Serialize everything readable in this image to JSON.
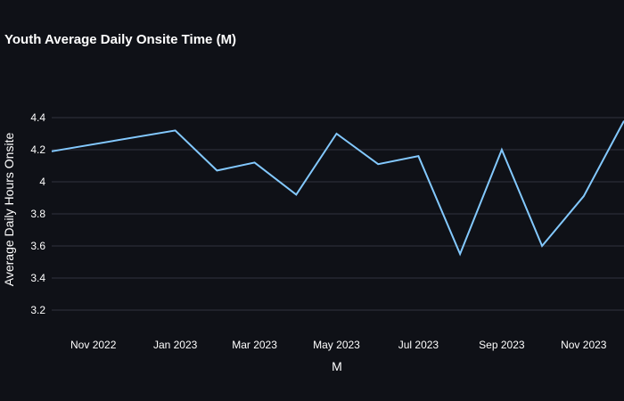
{
  "chart_data": {
    "type": "line",
    "title": "Youth Average Daily Onsite Time (M)",
    "xlabel": "M",
    "ylabel": "Average Daily Hours Onsite",
    "ylim": [
      3.1,
      4.6
    ],
    "y_ticks": [
      3.2,
      3.4,
      3.6,
      3.8,
      4,
      4.2,
      4.4
    ],
    "y_tick_labels": [
      "3.2",
      "3.4",
      "3.6",
      "3.8",
      "4",
      "4.2",
      "4.4"
    ],
    "x_tick_dates": [
      "2022-11-01",
      "2023-01-01",
      "2023-03-01",
      "2023-05-01",
      "2023-07-01",
      "2023-09-01",
      "2023-11-01"
    ],
    "x_tick_labels": [
      "Nov 2022",
      "Jan 2023",
      "Mar 2023",
      "May 2023",
      "Jul 2023",
      "Sep 2023",
      "Nov 2023"
    ],
    "grid": true,
    "line_color": "#83c9ff",
    "series": [
      {
        "x": [
          "2022-10-01",
          "2023-01-01",
          "2023-02-01",
          "2023-03-01",
          "2023-04-01",
          "2023-05-01",
          "2023-06-01",
          "2023-07-01",
          "2023-08-01",
          "2023-09-01",
          "2023-10-01",
          "2023-11-01",
          "2023-12-01"
        ],
        "y": [
          4.19,
          4.32,
          4.07,
          4.12,
          3.92,
          4.3,
          4.11,
          4.16,
          3.55,
          4.2,
          3.6,
          3.91,
          4.38
        ]
      }
    ]
  }
}
